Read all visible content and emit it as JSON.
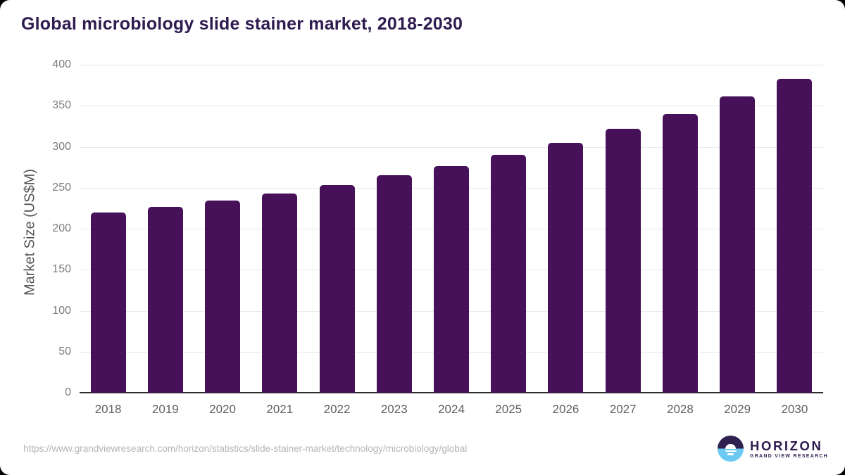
{
  "header": {
    "title": "Global microbiology slide stainer market, 2018-2030"
  },
  "chart_data": {
    "type": "bar",
    "title": "Global microbiology slide stainer market, 2018-2030",
    "categories": [
      "2018",
      "2019",
      "2020",
      "2021",
      "2022",
      "2023",
      "2024",
      "2025",
      "2026",
      "2027",
      "2028",
      "2029",
      "2030"
    ],
    "values": [
      220,
      227,
      234,
      243,
      253,
      265,
      276,
      290,
      305,
      322,
      340,
      361,
      383
    ],
    "xlabel": "",
    "ylabel": "Market Size (US$M)",
    "ylim": [
      0,
      400
    ],
    "yticks": [
      0,
      50,
      100,
      150,
      200,
      250,
      300,
      350,
      400
    ],
    "grid": "horizontal",
    "legend": "none",
    "bar_color": "#47115A"
  },
  "footer": {
    "source_url": "https://www.grandviewresearch.com/horizon/statistics/slide-stainer-market/technology/microbiology/global",
    "logo": {
      "brand": "HORIZON",
      "sub_brand": "GRAND VIEW RESEARCH"
    }
  },
  "colors": {
    "bar": "#47115A",
    "title_text": "#2E1B4F",
    "axis_label": "#555555",
    "tick_label": "#7C7C7C",
    "gridline": "#E8E8E8",
    "axis_line": "#2B2B2B",
    "url_text": "#B5B5B5",
    "logo_purple": "#2E2150",
    "logo_blue": "#6CC9F1",
    "background": "#FFFFFF"
  }
}
